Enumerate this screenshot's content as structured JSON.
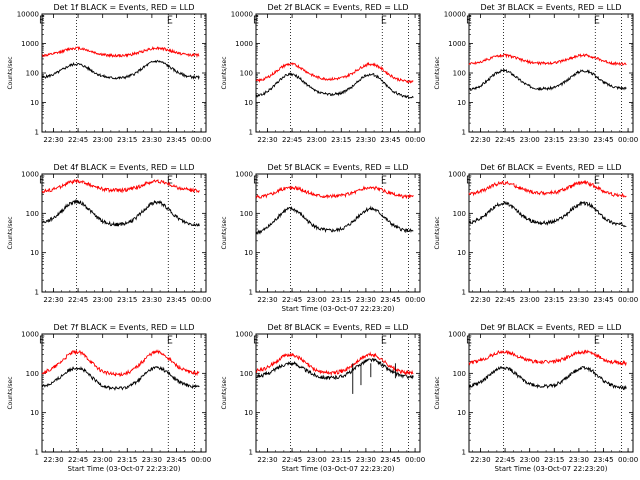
{
  "chart_data": [
    {
      "type": "line",
      "title": "Det 1f BLACK = Events, RED = LLD",
      "xlabel": "",
      "ylabel": "Counts/sec",
      "ylim": [
        1,
        10000
      ],
      "ylog": true,
      "yticks": [
        "1",
        "10",
        "100",
        "1000",
        "10000"
      ],
      "xticks": [
        "22:30",
        "22:45",
        "23:00",
        "23:15",
        "23:30",
        "23:45",
        "00:00"
      ],
      "dotted_lines": [
        "22:44",
        "23:40",
        "23:56"
      ],
      "e_marks": [
        "22:22",
        "23:40"
      ],
      "series": [
        {
          "name": "BLACK = Events",
          "color": "#000000",
          "peaks": [
            200,
            250
          ],
          "troughs": [
            68,
            65,
            70
          ]
        },
        {
          "name": "RED = LLD",
          "color": "#ff0000",
          "peaks": [
            700,
            700
          ],
          "troughs": [
            380,
            380,
            400
          ]
        }
      ]
    },
    {
      "type": "line",
      "title": "Det 2f BLACK = Events, RED = LLD",
      "xlabel": "",
      "ylabel": "Counts/sec",
      "ylim": [
        1,
        10000
      ],
      "ylog": true,
      "yticks": [
        "1",
        "10",
        "100",
        "1000",
        "10000"
      ],
      "xticks": [
        "22:30",
        "22:45",
        "23:00",
        "23:15",
        "23:30",
        "23:45",
        "00:00"
      ],
      "dotted_lines": [
        "22:44",
        "23:40",
        "23:56"
      ],
      "e_marks": [
        "22:22",
        "23:40"
      ],
      "series": [
        {
          "name": "BLACK = Events",
          "color": "#000000",
          "peaks": [
            90,
            90
          ],
          "troughs": [
            15,
            18,
            15
          ]
        },
        {
          "name": "RED = LLD",
          "color": "#ff0000",
          "peaks": [
            200,
            200
          ],
          "troughs": [
            50,
            60,
            50
          ]
        }
      ]
    },
    {
      "type": "line",
      "title": "Det 3f BLACK = Events, RED = LLD",
      "xlabel": "",
      "ylabel": "Counts/sec",
      "ylim": [
        1,
        10000
      ],
      "ylog": true,
      "yticks": [
        "1",
        "10",
        "100",
        "1000",
        "10000"
      ],
      "xticks": [
        "22:30",
        "22:45",
        "23:00",
        "23:15",
        "23:30",
        "23:45",
        "00:00"
      ],
      "dotted_lines": [
        "22:44",
        "23:40",
        "23:56"
      ],
      "e_marks": [
        "22:22",
        "23:40"
      ],
      "series": [
        {
          "name": "BLACK = Events",
          "color": "#000000",
          "peaks": [
            120,
            120
          ],
          "troughs": [
            25,
            28,
            30
          ]
        },
        {
          "name": "RED = LLD",
          "color": "#ff0000",
          "peaks": [
            400,
            400
          ],
          "troughs": [
            200,
            210,
            200
          ]
        }
      ]
    },
    {
      "type": "line",
      "title": "Det 4f BLACK = Events, RED = LLD",
      "xlabel": "",
      "ylabel": "Counts/sec",
      "ylim": [
        1,
        1000
      ],
      "ylog": true,
      "yticks": [
        "1",
        "10",
        "100",
        "1000"
      ],
      "xticks": [
        "22:30",
        "22:45",
        "23:00",
        "23:15",
        "23:30",
        "23:45",
        "00:00"
      ],
      "dotted_lines": [
        "22:44",
        "23:40",
        "23:56"
      ],
      "e_marks": [
        "22:22",
        "23:40"
      ],
      "series": [
        {
          "name": "BLACK = Events",
          "color": "#000000",
          "peaks": [
            200,
            190
          ],
          "troughs": [
            55,
            50,
            50
          ]
        },
        {
          "name": "RED = LLD",
          "color": "#ff0000",
          "peaks": [
            650,
            650
          ],
          "troughs": [
            350,
            380,
            380
          ]
        }
      ]
    },
    {
      "type": "line",
      "title": "Det 5f BLACK = Events, RED = LLD",
      "xlabel": "Start Time (03-Oct-07 22:23:20)",
      "ylabel": "Counts/sec",
      "ylim": [
        1,
        1000
      ],
      "ylog": true,
      "yticks": [
        "1",
        "10",
        "100",
        "1000"
      ],
      "xticks": [
        "22:30",
        "22:45",
        "23:00",
        "23:15",
        "23:30",
        "23:45",
        "00:00"
      ],
      "dotted_lines": [
        "22:44",
        "23:40",
        "23:56"
      ],
      "e_marks": [
        "22:22",
        "23:40"
      ],
      "series": [
        {
          "name": "BLACK = Events",
          "color": "#000000",
          "peaks": [
            130,
            130
          ],
          "troughs": [
            30,
            35,
            35
          ]
        },
        {
          "name": "RED = LLD",
          "color": "#ff0000",
          "peaks": [
            450,
            450
          ],
          "troughs": [
            250,
            270,
            260
          ]
        }
      ]
    },
    {
      "type": "line",
      "title": "Det 6f BLACK = Events, RED = LLD",
      "xlabel": "",
      "ylabel": "Counts/sec",
      "ylim": [
        1,
        1000
      ],
      "ylog": true,
      "yticks": [
        "1",
        "10",
        "100",
        "1000"
      ],
      "xticks": [
        "22:30",
        "22:45",
        "23:00",
        "23:15",
        "23:30",
        "23:45",
        "00:00"
      ],
      "dotted_lines": [
        "22:44",
        "23:40",
        "23:56"
      ],
      "e_marks": [
        "22:22",
        "23:40"
      ],
      "series": [
        {
          "name": "BLACK = Events",
          "color": "#000000",
          "peaks": [
            180,
            180
          ],
          "troughs": [
            55,
            55,
            50
          ]
        },
        {
          "name": "RED = LLD",
          "color": "#ff0000",
          "peaks": [
            600,
            600
          ],
          "troughs": [
            300,
            320,
            280
          ]
        }
      ]
    },
    {
      "type": "line",
      "title": "Det 7f BLACK = Events, RED = LLD",
      "xlabel": "Start Time (03-Oct-07 22:23:20)",
      "ylabel": "Counts/sec",
      "ylim": [
        1,
        1000
      ],
      "ylog": true,
      "yticks": [
        "1",
        "10",
        "100",
        "1000"
      ],
      "xticks": [
        "22:30",
        "22:45",
        "23:00",
        "23:15",
        "23:30",
        "23:45",
        "00:00"
      ],
      "dotted_lines": [
        "22:44",
        "23:40",
        "23:56"
      ],
      "e_marks": [
        "22:22",
        "23:40"
      ],
      "series": [
        {
          "name": "BLACK = Events",
          "color": "#000000",
          "peaks": [
            140,
            140
          ],
          "troughs": [
            45,
            40,
            45
          ]
        },
        {
          "name": "RED = LLD",
          "color": "#ff0000",
          "peaks": [
            350,
            350
          ],
          "troughs": [
            100,
            90,
            100
          ]
        }
      ]
    },
    {
      "type": "line",
      "title": "Det 8f BLACK = Events, RED = LLD",
      "xlabel": "Start Time (03-Oct-07 22:23:20)",
      "ylabel": "Counts/sec",
      "ylim": [
        1,
        1000
      ],
      "ylog": true,
      "yticks": [
        "1",
        "10",
        "100",
        "1000"
      ],
      "xticks": [
        "22:30",
        "22:45",
        "23:00",
        "23:15",
        "23:30",
        "23:45",
        "00:00"
      ],
      "dotted_lines": [
        "22:44",
        "23:40",
        "23:56"
      ],
      "e_marks": [
        "22:22",
        "23:40"
      ],
      "series": [
        {
          "name": "BLACK = Events",
          "color": "#000000",
          "peaks": [
            180,
            220
          ],
          "troughs": [
            80,
            75,
            80
          ]
        },
        {
          "name": "RED = LLD",
          "color": "#ff0000",
          "peaks": [
            300,
            300
          ],
          "troughs": [
            110,
            100,
            100
          ]
        }
      ],
      "dropouts": [
        {
          "time": "23:22",
          "value": 30
        },
        {
          "time": "23:27",
          "value": 50
        },
        {
          "time": "23:33",
          "value": 80
        },
        {
          "time": "23:48",
          "value": 75
        }
      ]
    },
    {
      "type": "line",
      "title": "Det 9f BLACK = Events, RED = LLD",
      "xlabel": "Start Time (03-Oct-07 22:23:20)",
      "ylabel": "Counts/sec",
      "ylim": [
        1,
        1000
      ],
      "ylog": true,
      "yticks": [
        "1",
        "10",
        "100",
        "1000"
      ],
      "xticks": [
        "22:30",
        "22:45",
        "23:00",
        "23:15",
        "23:30",
        "23:45",
        "00:00"
      ],
      "dotted_lines": [
        "22:44",
        "23:40",
        "23:56"
      ],
      "e_marks": [
        "22:22",
        "23:40"
      ],
      "series": [
        {
          "name": "BLACK = Events",
          "color": "#000000",
          "peaks": [
            140,
            140
          ],
          "troughs": [
            45,
            45,
            42
          ]
        },
        {
          "name": "RED = LLD",
          "color": "#ff0000",
          "peaks": [
            350,
            350
          ],
          "troughs": [
            180,
            190,
            180
          ]
        }
      ]
    }
  ]
}
